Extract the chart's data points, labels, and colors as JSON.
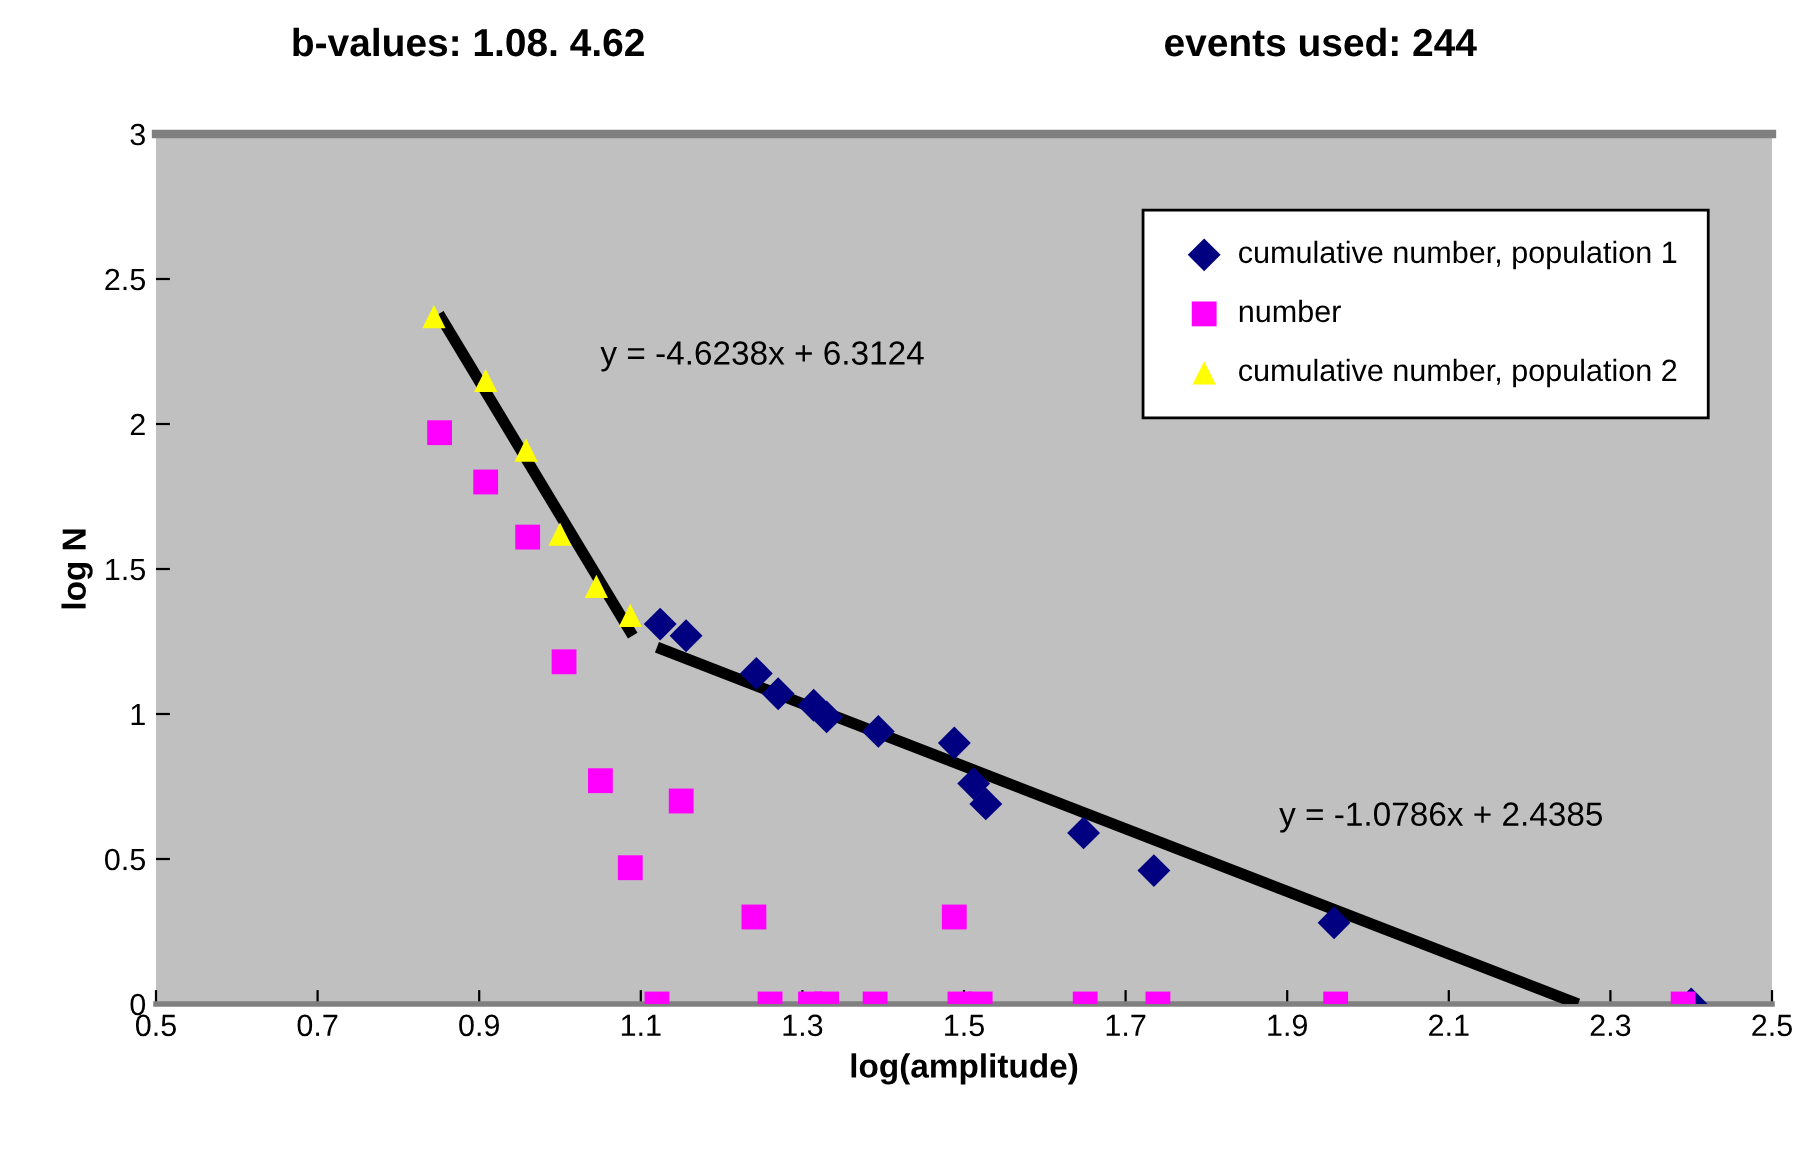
{
  "chart_data": {
    "type": "scatter",
    "xlabel": "log(amplitude)",
    "ylabel": "log N",
    "xlim": [
      0.5,
      2.5
    ],
    "xticks": [
      0.5,
      0.7,
      0.9,
      1.1,
      1.3,
      1.5,
      1.7,
      1.9,
      2.1,
      2.3,
      2.5
    ],
    "ylim": [
      0,
      3
    ],
    "yticks": [
      0,
      0.5,
      1,
      1.5,
      2,
      2.5,
      3
    ],
    "grid": false,
    "legend": "top right",
    "annotations": [
      "b-values: 1.08. 4.62",
      "events used: 244",
      "y = -4.6238x + 6.3124",
      "y = -1.0786x + 2.4385"
    ],
    "series": [
      {
        "name": "cumulative number, population 1",
        "color": "#000080",
        "marker": "diamond",
        "x": [
          1.124,
          1.156,
          1.243,
          1.27,
          1.314,
          1.33,
          1.394,
          1.488,
          1.512,
          1.527,
          1.648,
          1.735,
          1.958,
          2.4
        ],
        "values": [
          1.31,
          1.27,
          1.14,
          1.07,
          1.03,
          0.99,
          0.94,
          0.9,
          0.76,
          0.69,
          0.59,
          0.46,
          0.28,
          0
        ]
      },
      {
        "name": "number",
        "color": "#ff00ff",
        "marker": "square",
        "x": [
          0.851,
          0.908,
          0.96,
          1.005,
          1.05,
          1.087,
          1.15,
          1.24,
          1.488,
          1.12,
          1.26,
          1.31,
          1.33,
          1.39,
          1.495,
          1.52,
          1.65,
          1.74,
          1.96,
          2.39
        ],
        "values": [
          1.97,
          1.8,
          1.61,
          1.18,
          0.77,
          0.47,
          0.7,
          0.3,
          0.3,
          0,
          0,
          0,
          0,
          0,
          0,
          0,
          0,
          0,
          0,
          0
        ]
      },
      {
        "name": "cumulative number, population 2",
        "color": "#ffff00",
        "marker": "triangle",
        "x": [
          0.844,
          0.908,
          0.958,
          1.0,
          1.045,
          1.087
        ],
        "values": [
          2.37,
          2.15,
          1.91,
          1.62,
          1.44,
          1.34
        ]
      },
      {
        "type": "line",
        "color": "#000000",
        "marker": "none",
        "x": [
          0.85,
          1.09
        ],
        "values": [
          2.38,
          1.27
        ]
      },
      {
        "type": "line",
        "color": "#000000",
        "marker": "none",
        "x": [
          1.12,
          2.26
        ],
        "values": [
          1.23,
          0
        ]
      }
    ]
  }
}
